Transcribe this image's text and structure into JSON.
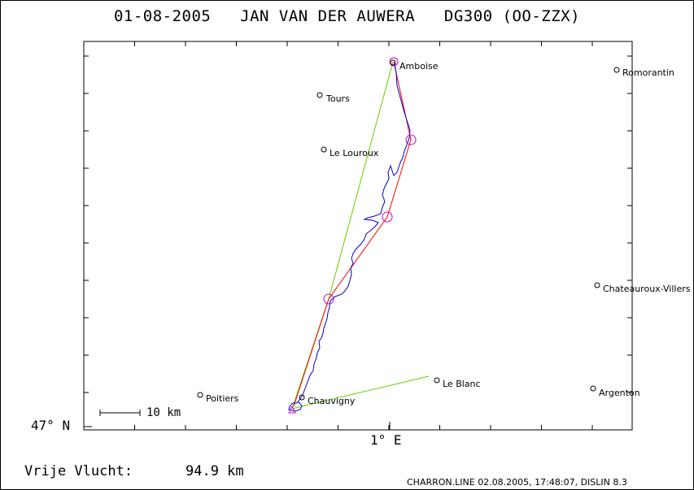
{
  "title": "01-08-2005   JAN VAN DER AUWERA   DG300 (OO-ZZX)",
  "axes": {
    "lat_label": "47° N",
    "lon_label": "1° E"
  },
  "scale_bar": {
    "label": "10 km",
    "km": 10
  },
  "cities": [
    {
      "name": "Amboise"
    },
    {
      "name": "Romorantin"
    },
    {
      "name": "Tours"
    },
    {
      "name": "Le Louroux"
    },
    {
      "name": "Chateauroux-Villers"
    },
    {
      "name": "Le Blanc"
    },
    {
      "name": "Argenton"
    },
    {
      "name": "Poitiers"
    },
    {
      "name": "Chauvigny"
    }
  ],
  "flight": {
    "distance_label": "Vrije Vlucht:",
    "distance_value": "94.9 km",
    "track_color": "#0000cc",
    "task_color": "#ff0000",
    "declared_color": "#66cc00",
    "turnpoint_color": "#cc00cc"
  },
  "footer": "CHARRON.LINE 02.08.2005, 17:48:07, DISLIN 8.3"
}
